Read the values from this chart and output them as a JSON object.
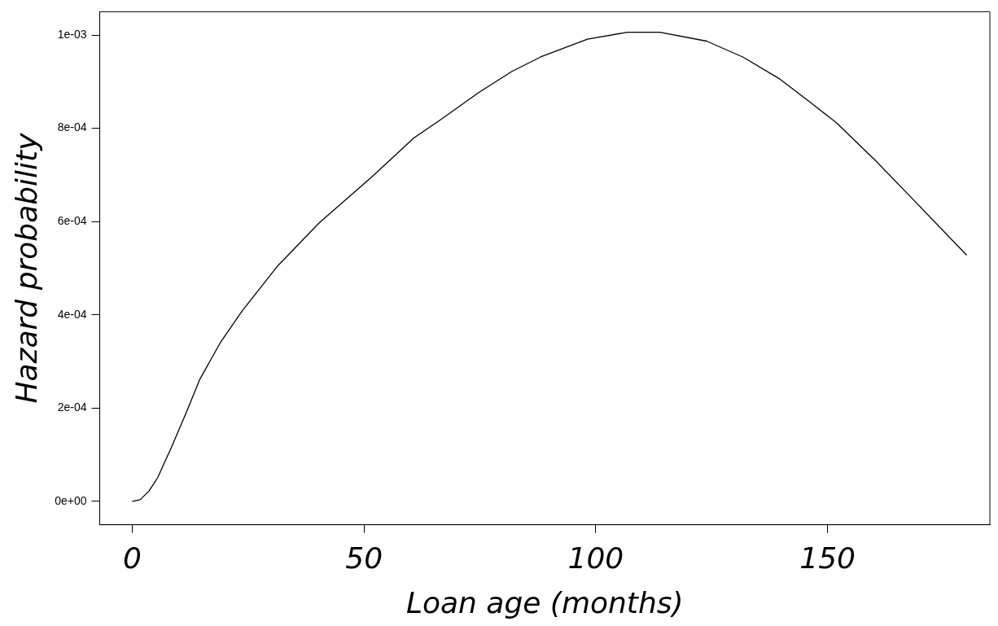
{
  "chart_data": {
    "type": "line",
    "xlabel": "Loan age (months)",
    "ylabel": "Hazard probability",
    "xlim": [
      -7,
      185
    ],
    "xticks": [
      0,
      50,
      100,
      150
    ],
    "ylim": [
      -5e-05,
      0.00105
    ],
    "yticks": [
      {
        "value": 0,
        "label": "0e+00"
      },
      {
        "value": 0.0002,
        "label": "2e-04"
      },
      {
        "value": 0.0004,
        "label": "4e-04"
      },
      {
        "value": 0.0006,
        "label": "6e-04"
      },
      {
        "value": 0.0008,
        "label": "8e-04"
      },
      {
        "value": 0.001,
        "label": "1e-03"
      }
    ],
    "grid": false,
    "legend": false,
    "marker": "none",
    "line_style": "solid",
    "series": [
      {
        "color": "#000000",
        "x": [
          0,
          1.7,
          3.6,
          5.5,
          8.5,
          11.6,
          14.6,
          19.1,
          23.7,
          31.2,
          40.3,
          51.7,
          60.7,
          66.6,
          74.8,
          81.9,
          88.1,
          98.2,
          106.8,
          113.8,
          123.9,
          131.7,
          139.5,
          146.5,
          151.9,
          160.5,
          168.3,
          180
        ],
        "values": [
          0,
          3.6e-06,
          2.2e-05,
          5.1e-05,
          0.000117,
          0.000189,
          0.000262,
          0.000342,
          0.000408,
          0.000503,
          0.000597,
          0.000696,
          0.000779,
          0.000819,
          0.000877,
          0.000922,
          0.000953,
          0.000991,
          0.001006,
          0.001006,
          0.000987,
          0.000953,
          0.000907,
          0.000854,
          0.000812,
          0.000729,
          0.000649,
          0.000528
        ]
      }
    ]
  }
}
